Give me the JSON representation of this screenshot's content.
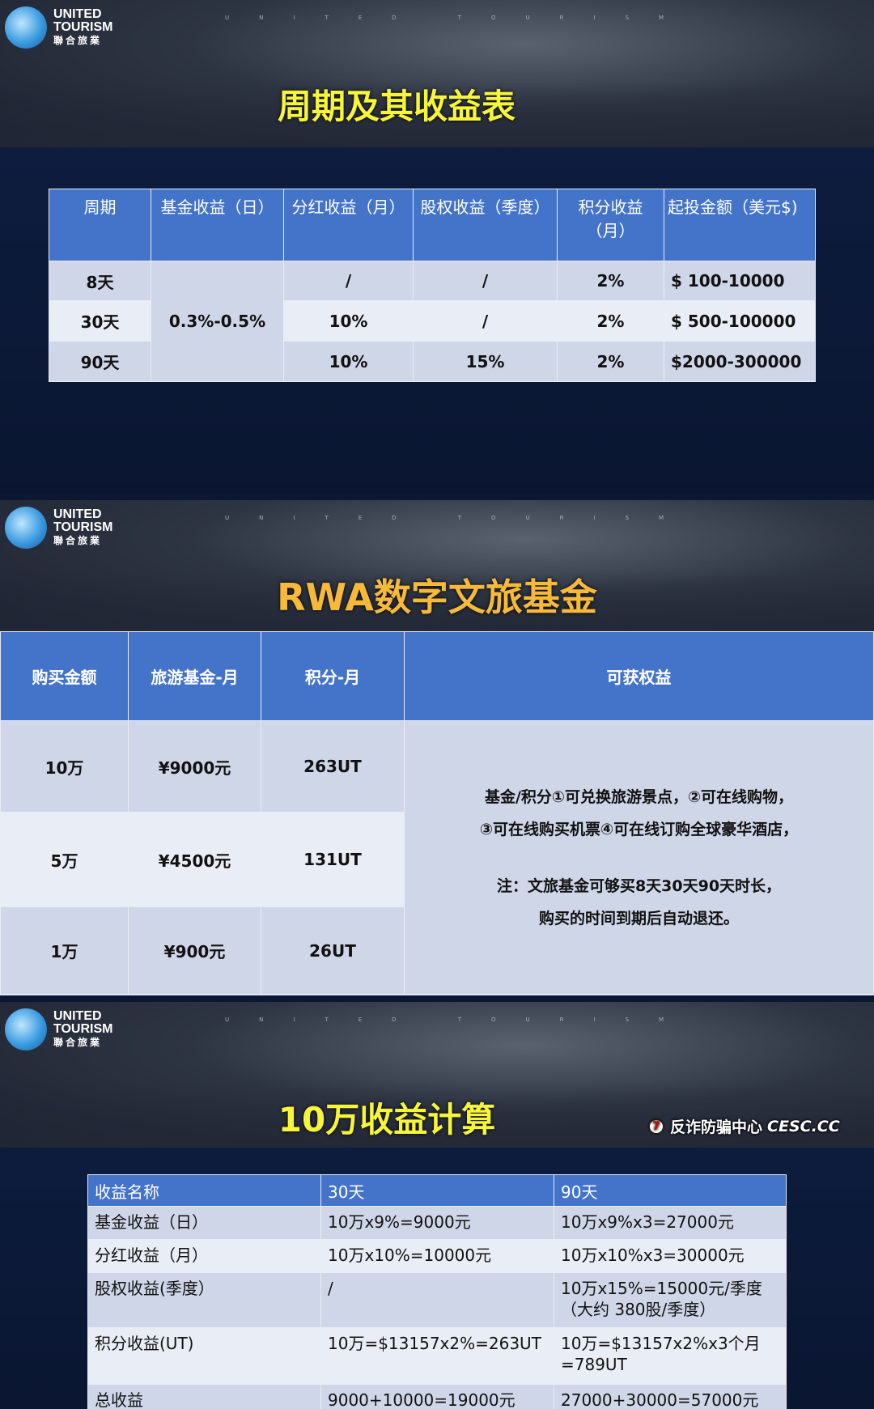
{
  "brand": {
    "line1": "UNITED",
    "line2": "TOURISM",
    "cn": "聯合旅業",
    "tagline": "UNITED TOURISM"
  },
  "slide1": {
    "title": "周期及其收益表",
    "headers": [
      "周期",
      "基金收益（日）",
      "分红收益（月）",
      "股权收益（季度）",
      "积分收益（月）",
      "起投金额（美元$)"
    ],
    "fund_daily": "0.3%-0.5%",
    "rows": [
      [
        "8天",
        "/",
        "/",
        "2%",
        "$ 100-10000"
      ],
      [
        "30天",
        "10%",
        "/",
        "2%",
        "$ 500-100000"
      ],
      [
        "90天",
        "10%",
        "15%",
        "2%",
        "$2000-300000"
      ]
    ]
  },
  "slide2": {
    "title": "RWA数字文旅基金",
    "headers": [
      "购买金额",
      "旅游基金-月",
      "积分-月",
      "可获权益"
    ],
    "rows": [
      [
        "10万",
        "¥9000元",
        "263UT"
      ],
      [
        "5万",
        "¥4500元",
        "131UT"
      ],
      [
        "1万",
        "¥900元",
        "26UT"
      ]
    ],
    "benefits": [
      "基金/积分①可兑换旅游景点，②可在线购物，",
      "③可在线购买机票④可在线订购全球豪华酒店，",
      "注：文旅基金可够买8天30天90天时长，",
      "购买的时间到期后自动退还。"
    ]
  },
  "slide3": {
    "title": "10万收益计算",
    "headers": [
      "收益名称",
      "30天",
      "90天"
    ],
    "rows": [
      [
        "基金收益（日）",
        "10万x9%=9000元",
        "10万x9%x3=27000元"
      ],
      [
        "分红收益（月）",
        "10万x10%=10000元",
        "10万x10%x3=30000元"
      ],
      [
        "股权收益(季度）",
        "/",
        "10万x15%=15000元/季度（大约 380股/季度）"
      ],
      [
        "积分收益(UT)",
        "10万=$13157x2%=263UT",
        "10万=$13157x2%x3个月=789UT"
      ],
      [
        "总收益",
        "9000+10000=19000元",
        "27000+30000=57000元"
      ]
    ]
  },
  "watermark": {
    "text": "反诈防骗中心",
    "site": "CESC.CC"
  }
}
